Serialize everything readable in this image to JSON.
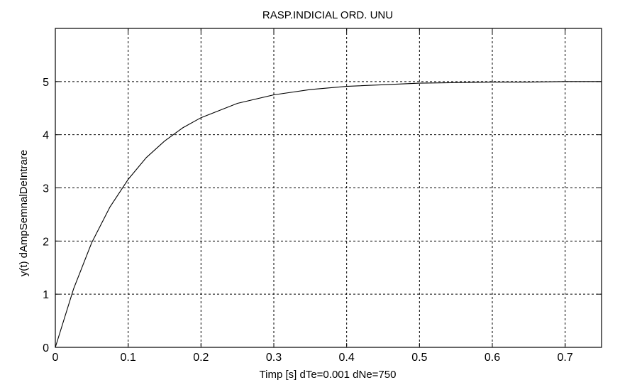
{
  "chart_data": {
    "type": "line",
    "title": "RASP.INDICIAL ORD. UNU",
    "xlabel": "Timp [s] dTe=0.001 dNe=750",
    "ylabel": "y(t) dAmpSemnalDeIntrare",
    "xlim": [
      0,
      0.75
    ],
    "ylim": [
      0,
      6
    ],
    "grid": true,
    "xticks": [
      0,
      0.1,
      0.2,
      0.3,
      0.4,
      0.5,
      0.6,
      0.7
    ],
    "xtick_labels": [
      "0",
      "0.1",
      "0.2",
      "0.3",
      "0.4",
      "0.5",
      "0.6",
      "0.7"
    ],
    "yticks": [
      0,
      1,
      2,
      3,
      4,
      5
    ],
    "ytick_labels": [
      "0",
      "1",
      "2",
      "3",
      "4",
      "5"
    ],
    "series": [
      {
        "x": [
          0,
          0.025,
          0.05,
          0.075,
          0.1,
          0.125,
          0.15,
          0.175,
          0.2,
          0.25,
          0.3,
          0.35,
          0.4,
          0.45,
          0.5,
          0.55,
          0.6,
          0.65,
          0.7,
          0.75
        ],
        "values": [
          0,
          1.1,
          1.97,
          2.64,
          3.16,
          3.57,
          3.88,
          4.13,
          4.32,
          4.59,
          4.75,
          4.85,
          4.91,
          4.94,
          4.97,
          4.98,
          4.99,
          4.99,
          5.0,
          5.0
        ]
      }
    ]
  },
  "colors": {
    "line": "#000000",
    "grid": "#000000",
    "axes": "#000000"
  }
}
